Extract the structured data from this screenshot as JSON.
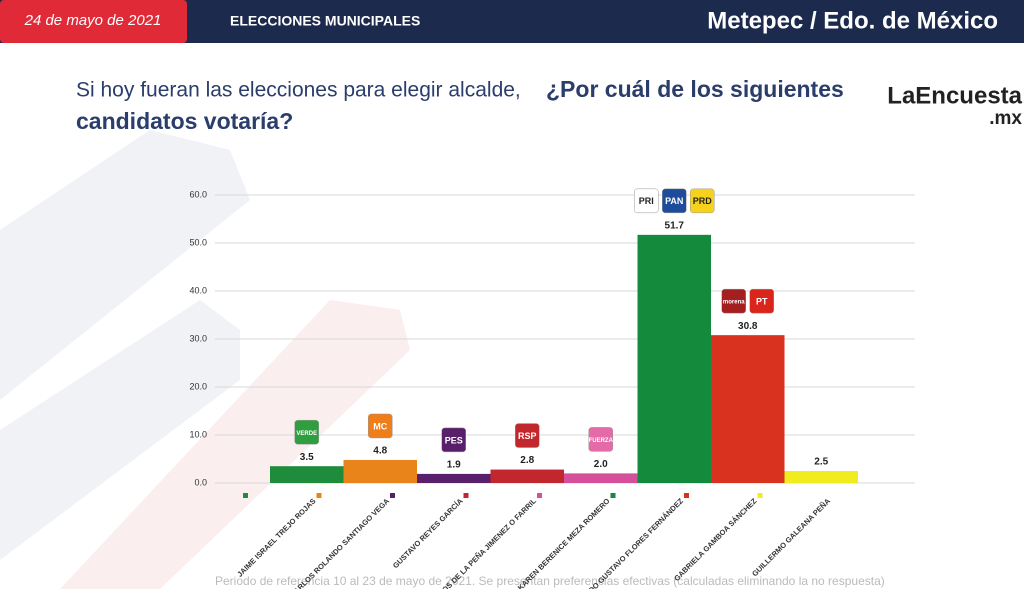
{
  "header": {
    "date": "24 de mayo de 2021",
    "section": "ELECCIONES MUNICIPALES",
    "location": "Metepec / Edo. de México"
  },
  "question": {
    "lead": "Si hoy fueran las elecciones para elegir alcalde,",
    "main": "¿Por cuál de los siguientes",
    "main2": "candidatos votaría?"
  },
  "logo": {
    "name": "LaEncuesta",
    "suffix": ".mx"
  },
  "footnote": "Periodo de referencia 10 al 23 de mayo de 2021. Se presentan preferencias efectivas (calculadas eliminando la no respuesta)",
  "chart_data": {
    "type": "bar",
    "categories": [
      "JAIME ISRAEL TREJO ROJAS",
      "CARLOS ROLANDO SANTIAGO VEGA",
      "GUSTAVO REYES GARCÍA",
      "CARLOS DE LA PEÑA JIMENEZ O FARRIL",
      "KAREN BERENICE MEZA ROMERO",
      "FERNANDO GUSTAVO FLORES FERNÁNDEZ",
      "GABRIELA GAMBOA SÁNCHEZ",
      "GUILLERMO GALEANA PEÑA"
    ],
    "values": [
      3.5,
      4.8,
      1.9,
      2.8,
      2.0,
      51.7,
      30.8,
      2.5
    ],
    "value_labels": [
      "3.5",
      "4.8",
      "1.9",
      "2.8",
      "2.0",
      "51.7",
      "30.8",
      "2.5"
    ],
    "colors": [
      "#1e8c3a",
      "#e8841a",
      "#5a1f6b",
      "#c1272d",
      "#d64f9a",
      "#148a3c",
      "#d9321e",
      "#f0ec1e"
    ],
    "party_logos": [
      [
        "VERDE"
      ],
      [
        "MC"
      ],
      [
        "PES"
      ],
      [
        "RSP"
      ],
      [
        "FUERZA"
      ],
      [
        "PRI",
        "PAN",
        "PRD"
      ],
      [
        "morena",
        "PT"
      ],
      []
    ],
    "ylim": [
      0,
      60
    ],
    "yticks": [
      {
        "value": 0,
        "label": "0.0"
      },
      {
        "value": 10,
        "label": "10.0"
      },
      {
        "value": 20,
        "label": "20.0"
      },
      {
        "value": 30,
        "label": "30.0"
      },
      {
        "value": 40,
        "label": "40.0"
      },
      {
        "value": 50,
        "label": "50.0"
      },
      {
        "value": 60,
        "label": "60.0"
      }
    ],
    "grid": true
  }
}
